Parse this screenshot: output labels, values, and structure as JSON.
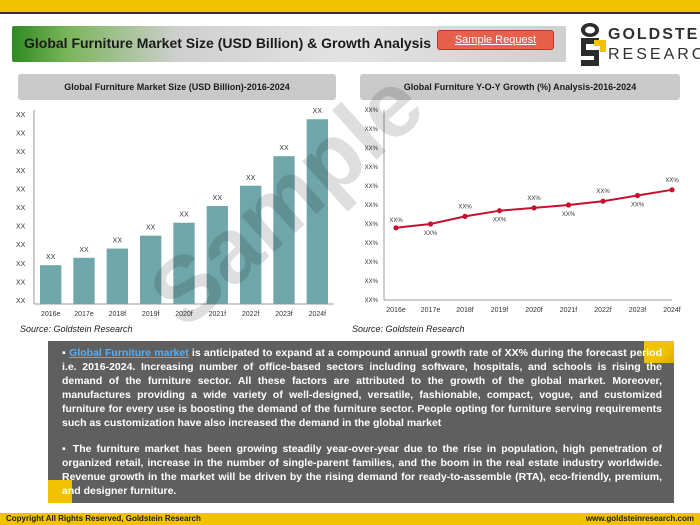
{
  "header": {
    "title": "Global Furniture Market Size (USD Billion) & Growth Analysis",
    "sample_button": "Sample Request"
  },
  "logo": {
    "line1": "GOLDSTEIN",
    "line2": "RESEARCH"
  },
  "watermark": "Sample",
  "chart_data": [
    {
      "type": "bar",
      "title": "Global Furniture Market Size (USD Billion)-2016-2024",
      "categories": [
        "2016e",
        "2017e",
        "2018f",
        "2019f",
        "2020f",
        "2021f",
        "2022f",
        "2023f",
        "2024f"
      ],
      "values": [
        21,
        25,
        30,
        37,
        44,
        53,
        64,
        80,
        100
      ],
      "data_labels": [
        "XX",
        "XX",
        "XX",
        "XX",
        "XX",
        "XX",
        "XX",
        "XX",
        "XX"
      ],
      "y_tick_labels": [
        "XX",
        "XX",
        "XX",
        "XX",
        "XX",
        "XX",
        "XX",
        "XX",
        "XX",
        "XX",
        "XX"
      ],
      "ylim": [
        0,
        105
      ],
      "bar_color": "#6fa6a9",
      "grid": false,
      "source": "Source: Goldstein Research"
    },
    {
      "type": "line",
      "title": "Global Furniture Y-O-Y Growth (%) Analysis-2016-2024",
      "categories": [
        "2016e",
        "2017e",
        "2018f",
        "2019f",
        "2020f",
        "2021f",
        "2022f",
        "2023f",
        "2024f"
      ],
      "values": [
        38,
        40,
        44,
        47,
        48.5,
        50,
        52,
        55,
        58
      ],
      "data_labels": [
        "XX%",
        "XX%",
        "XX%",
        "XX%",
        "XX%",
        "XX%",
        "XX%",
        "XX%",
        "XX%"
      ],
      "y_tick_labels": [
        "XX%",
        "XX%",
        "XX%",
        "XX%",
        "XX%",
        "XX%",
        "XX%",
        "XX%",
        "XX%",
        "XX%",
        "XX%"
      ],
      "ylim": [
        0,
        100
      ],
      "line_color": "#c8102e",
      "grid": false,
      "source": "Source: Goldstein Research"
    }
  ],
  "content": {
    "para1_link": "Global Furniture market",
    "para1_rest": " is anticipated to expand at a compound annual growth rate of XX% during the forecast period i.e. 2016-2024. Increasing number of office-based sectors including software, hospitals, and schools is rising the demand of the furniture sector. All these factors are attributed to the growth of the global market. Moreover, manufactures providing a wide variety of well-designed, versatile, fashionable, compact, vogue, and customized furniture for every use is boosting the demand of the furniture sector. People opting for furniture serving requirements such as customization have also increased the demand in the global market",
    "para2": "The furniture market has been growing steadily year-over-year due to the rise in population, high penetration of organized retail, increase in the number of single-parent families, and the boom in the real estate industry worldwide. Revenue growth in the market will be driven by the rising demand for ready-to-assemble (RTA), eco-friendly, premium, and designer furniture."
  },
  "footer": {
    "left": "Copyright     All Rights Reserved, Goldstein Research",
    "right": "www.goldsteinresearch.com"
  },
  "colors": {
    "brand_yellow": "#f2c200",
    "accent_red": "#e8604c",
    "text_box": "#5f5f5f",
    "link": "#4fb0ff"
  }
}
